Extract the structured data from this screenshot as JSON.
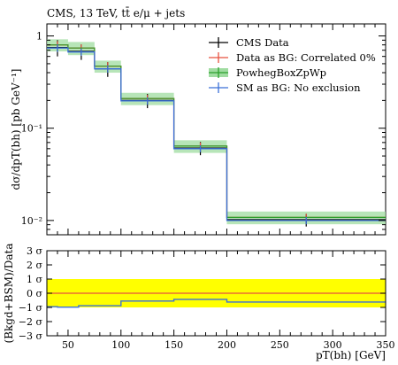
{
  "chart_data": {
    "type": "line",
    "title": "CMS, 13 TeV, tt̄ e/μ + jets",
    "xlabel": "pT(bh) [GeV]",
    "ylabel": "dσ/dpT(bh) [pb GeV⁻¹]",
    "ratio_ylabel": "(Bkgd+BSM)/Data",
    "xlim": [
      30,
      350
    ],
    "ylim": [
      0.007,
      1.35
    ],
    "yscale": "log",
    "ratio_ylim": [
      -3,
      3
    ],
    "x_ticks": [
      "50",
      "100",
      "150",
      "200",
      "250",
      "300",
      "350"
    ],
    "y_ticks": [
      {
        "value": 1,
        "label": "1"
      },
      {
        "value": 0.1,
        "label": "10⁻¹"
      },
      {
        "value": 0.01,
        "label": "10⁻²"
      }
    ],
    "ratio_ticks": [
      {
        "value": 3,
        "label": "3 σ"
      },
      {
        "value": 2,
        "label": "2 σ"
      },
      {
        "value": 1,
        "label": "1 σ"
      },
      {
        "value": 0,
        "label": "0 σ"
      },
      {
        "value": -1,
        "label": "−1 σ"
      },
      {
        "value": -2,
        "label": "−2 σ"
      },
      {
        "value": -3,
        "label": "−3 σ"
      }
    ],
    "bins": [
      [
        30,
        50
      ],
      [
        50,
        75
      ],
      [
        75,
        100
      ],
      [
        100,
        150
      ],
      [
        150,
        200
      ],
      [
        200,
        350
      ]
    ],
    "legend_position": "top-right",
    "series": [
      {
        "name": "CMS Data",
        "color": "#000000",
        "kind": "points",
        "values": [
          0.75,
          0.68,
          0.44,
          0.2,
          0.061,
          0.0102
        ],
        "errors": [
          0.15,
          0.13,
          0.08,
          0.035,
          0.01,
          0.0016
        ]
      },
      {
        "name": "Data as BG: Correlated 0%",
        "color": "#e8503f",
        "kind": "step",
        "values": [
          0.8,
          0.74,
          0.47,
          0.21,
          0.064,
          0.0108
        ],
        "errors": [
          0.08,
          0.07,
          0.05,
          0.02,
          0.006,
          0.001
        ]
      },
      {
        "name": "PowhegBoxZpWp",
        "color": "#2ca02c",
        "kind": "band",
        "values": [
          0.8,
          0.74,
          0.47,
          0.21,
          0.064,
          0.0108
        ],
        "band_low": [
          0.68,
          0.62,
          0.4,
          0.178,
          0.054,
          0.0091
        ],
        "band_high": [
          0.92,
          0.86,
          0.54,
          0.242,
          0.074,
          0.0125
        ]
      },
      {
        "name": "SM as BG: No exclusion",
        "color": "#3a6fd8",
        "kind": "step",
        "values": [
          0.74,
          0.67,
          0.44,
          0.198,
          0.06,
          0.01
        ],
        "errors": [
          0.07,
          0.06,
          0.04,
          0.018,
          0.005,
          0.0009
        ]
      }
    ],
    "ratio": {
      "band": [
        -1,
        1
      ],
      "band_color": "#ffff00",
      "reference_color": "#e8503f",
      "sm_series": [
        [
          30,
          -0.95
        ],
        [
          40,
          -0.95
        ],
        [
          40,
          -0.98
        ],
        [
          60,
          -0.98
        ],
        [
          60,
          -0.88
        ],
        [
          100,
          -0.88
        ],
        [
          100,
          -0.55
        ],
        [
          150,
          -0.55
        ],
        [
          150,
          -0.43
        ],
        [
          200,
          -0.43
        ],
        [
          200,
          -0.62
        ],
        [
          350,
          -0.62
        ]
      ]
    }
  }
}
